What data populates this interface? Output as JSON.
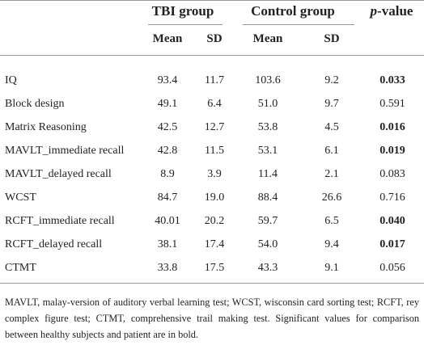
{
  "table": {
    "group_headers": [
      "TBI group",
      "Control group"
    ],
    "p_header": {
      "italic": "p",
      "rest": "-value"
    },
    "sub_headers": [
      "Mean",
      "SD",
      "Mean",
      "SD"
    ],
    "rows": [
      [
        "IQ",
        "93.4",
        "11.7",
        "103.6",
        "9.2",
        "0.033"
      ],
      [
        "Block design",
        "49.1",
        "6.4",
        "51.0",
        "9.7",
        "0.591"
      ],
      [
        "Matrix Reasoning",
        "42.5",
        "12.7",
        "53.8",
        "4.5",
        "0.016"
      ],
      [
        "MAVLT_immediate recall",
        "42.8",
        "11.5",
        "53.1",
        "6.1",
        "0.019"
      ],
      [
        "MAVLT_delayed recall",
        "8.9",
        "3.9",
        "11.4",
        "2.1",
        "0.083"
      ],
      [
        "WCST",
        "84.7",
        "19.0",
        "88.4",
        "26.6",
        "0.716"
      ],
      [
        "RCFT_immediate recall",
        "40.01",
        "20.2",
        "59.7",
        "6.5",
        "0.040"
      ],
      [
        "RCFT_delayed recall",
        "38.1",
        "17.4",
        "54.0",
        "9.4",
        "0.017"
      ],
      [
        "CTMT",
        "33.8",
        "17.5",
        "43.3",
        "9.1",
        "0.056"
      ]
    ],
    "bold_p": [
      true,
      false,
      true,
      true,
      false,
      false,
      true,
      true,
      false
    ]
  },
  "footnote": "MAVLT, malay-version of auditory verbal learning test; WCST, wisconsin card sorting test; RCFT, rey complex figure test; CTMT, comprehensive trail making test. Significant values for comparison between healthy subjects and patient are in bold."
}
